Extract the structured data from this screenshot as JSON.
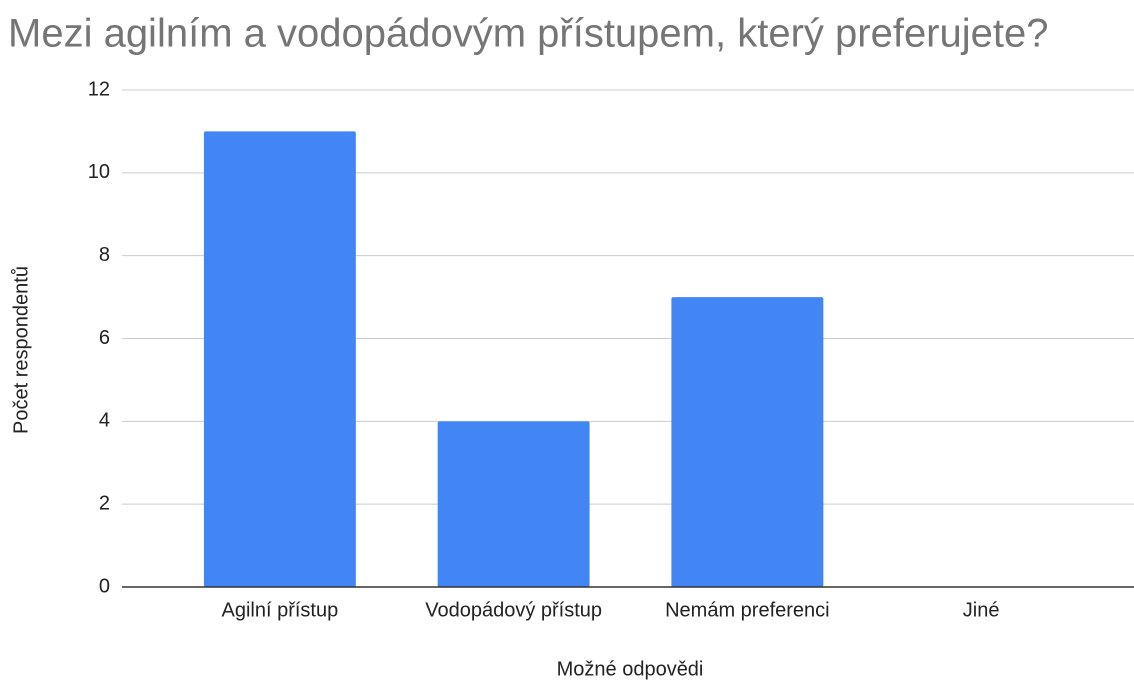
{
  "chart_data": {
    "type": "bar",
    "title": "Mezi agilním a vodopádovým přístupem, který preferujete?",
    "x_label": "Možné odpovědi",
    "y_label": "Počet respondentů",
    "categories": [
      "Agilní přístup",
      "Vodopádový přístup",
      "Nemám preferenci",
      "Jiné"
    ],
    "values": [
      11,
      4,
      7,
      0
    ],
    "color": "#4285f4",
    "ylim": [
      0,
      12
    ],
    "yticks": [
      0,
      2,
      4,
      6,
      8,
      10,
      12
    ],
    "grid": true
  }
}
